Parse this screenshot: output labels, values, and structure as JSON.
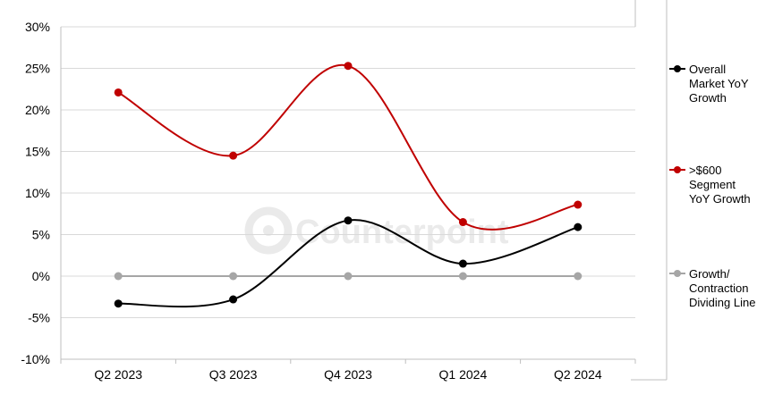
{
  "chart_data": {
    "type": "line",
    "title": "",
    "xlabel": "",
    "ylabel": "",
    "categories": [
      "Q2 2023",
      "Q3 2023",
      "Q4 2023",
      "Q1 2024",
      "Q2 2024"
    ],
    "ylim": [
      -10,
      30
    ],
    "yticks": [
      30,
      25,
      20,
      15,
      10,
      5,
      0,
      -5,
      -10
    ],
    "ytick_labels": [
      "30%",
      "25%",
      "20%",
      "15%",
      "10%",
      "5%",
      "0%",
      "-5%",
      "-10%"
    ],
    "grid": true,
    "smooth": true,
    "legend_position": "right",
    "series": [
      {
        "name_lines": [
          "Overall",
          "Market YoY",
          "Growth"
        ],
        "color": "#000000",
        "values": [
          -3.3,
          -2.8,
          6.7,
          1.5,
          5.9
        ]
      },
      {
        "name_lines": [
          ">$600",
          "Segment",
          "YoY Growth"
        ],
        "color": "#c00000",
        "values": [
          22.1,
          14.5,
          25.3,
          6.5,
          8.6
        ]
      },
      {
        "name_lines": [
          "Growth/",
          "Contraction",
          "Dividing Line"
        ],
        "color": "#a6a6a6",
        "values": [
          0,
          0,
          0,
          0,
          0
        ]
      }
    ],
    "watermark": {
      "text": "Counterpoint",
      "icon": "counterpoint-logo-icon"
    }
  }
}
